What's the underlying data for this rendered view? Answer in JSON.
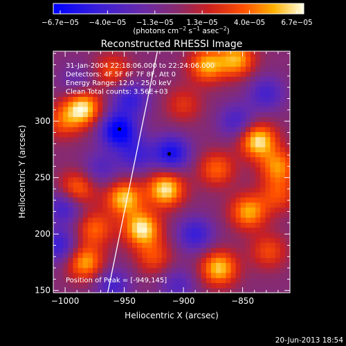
{
  "chart_data": {
    "type": "heatmap",
    "title": "Reconstructed RHESSI Image",
    "xlabel": "Heliocentric X (arcsec)",
    "ylabel": "Heliocentric Y (arcsec)",
    "xlim": [
      -1010,
      -810
    ],
    "ylim": [
      148,
      362
    ],
    "x_ticks": [
      -1000,
      -950,
      -900,
      -850
    ],
    "x_tick_labels": [
      "−1000",
      "−950",
      "−900",
      "−850"
    ],
    "y_ticks": [
      150,
      200,
      250,
      300
    ],
    "y_tick_labels": [
      "150",
      "200",
      "250",
      "300"
    ],
    "colorbar": {
      "min": -6.7e-05,
      "max": 6.7e-05,
      "tick_labels": [
        "−6.7e−05",
        "−4.0e−05",
        "−1.3e−05",
        "1.3e−05",
        "4.0e−05",
        "6.7e−05"
      ],
      "unit_prefix": "(photons cm",
      "unit_exp1": "−2",
      "unit_mid": " s",
      "unit_exp2": "−1",
      "unit_mid2": " asec",
      "unit_exp3": "−2",
      "unit_suffix": ")"
    },
    "annotations": [
      "31-Jan-2004 22:18:06.000 to 22:24:06.000",
      "Detectors: 4F 5F 6F 7F 8F, Att 0",
      "Energy Range: 12.0 - 25.0 keV",
      "Clean    Total counts: 3.56E+03"
    ],
    "peak_label": "Position of Peak = [-949,145]",
    "footer_date": "20-Jun-2013 18:54",
    "markers": [
      {
        "x": -954,
        "y": 293
      },
      {
        "x": -912,
        "y": 271
      }
    ],
    "limb_line": [
      {
        "x": -964,
        "y": 148
      },
      {
        "x": -922,
        "y": 362
      }
    ],
    "blobs": [
      {
        "x": -985,
        "y": 312,
        "v": 1.0
      },
      {
        "x": -990,
        "y": 240,
        "v": 0.7
      },
      {
        "x": -983,
        "y": 175,
        "v": 0.8
      },
      {
        "x": -1002,
        "y": 300,
        "v": 0.5
      },
      {
        "x": -975,
        "y": 205,
        "v": 0.6
      },
      {
        "x": -950,
        "y": 232,
        "v": 0.9
      },
      {
        "x": -935,
        "y": 205,
        "v": 1.0
      },
      {
        "x": -925,
        "y": 180,
        "v": 0.5
      },
      {
        "x": -915,
        "y": 240,
        "v": 1.0
      },
      {
        "x": -880,
        "y": 350,
        "v": 0.8
      },
      {
        "x": -855,
        "y": 355,
        "v": 0.8
      },
      {
        "x": -837,
        "y": 283,
        "v": 1.0
      },
      {
        "x": -872,
        "y": 258,
        "v": 0.6
      },
      {
        "x": -820,
        "y": 260,
        "v": 0.7
      },
      {
        "x": -870,
        "y": 170,
        "v": 0.9
      },
      {
        "x": -845,
        "y": 220,
        "v": 0.8
      },
      {
        "x": -828,
        "y": 185,
        "v": 0.5
      },
      {
        "x": -820,
        "y": 235,
        "v": 0.5
      },
      {
        "x": -960,
        "y": 345,
        "v": 0.5
      },
      {
        "x": -900,
        "y": 315,
        "v": 0.4
      },
      {
        "x": -955,
        "y": 292,
        "v": -1.0
      },
      {
        "x": -910,
        "y": 272,
        "v": -0.8
      },
      {
        "x": -945,
        "y": 320,
        "v": -0.6
      },
      {
        "x": -1000,
        "y": 225,
        "v": -0.6
      },
      {
        "x": -970,
        "y": 258,
        "v": -0.4
      },
      {
        "x": -940,
        "y": 270,
        "v": -0.5
      },
      {
        "x": -855,
        "y": 300,
        "v": -0.5
      },
      {
        "x": -890,
        "y": 200,
        "v": -0.6
      },
      {
        "x": -960,
        "y": 155,
        "v": -0.5
      },
      {
        "x": -905,
        "y": 155,
        "v": -0.4
      },
      {
        "x": -830,
        "y": 325,
        "v": -0.5
      },
      {
        "x": -1005,
        "y": 190,
        "v": -0.6
      },
      {
        "x": -990,
        "y": 335,
        "v": -0.3
      }
    ],
    "colors": {
      "background": "#000000",
      "text": "#ffffff",
      "marker": "#000000",
      "limb": "#ffffff"
    }
  }
}
